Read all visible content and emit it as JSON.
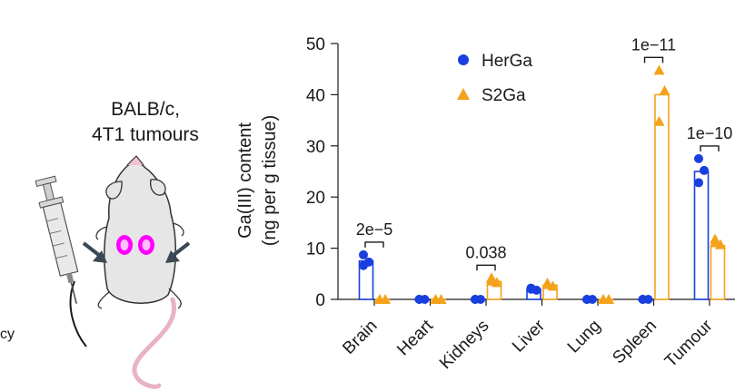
{
  "illustration": {
    "strain_line1": "BALB/c,",
    "strain_line2": "4T1 tumours",
    "cut_text": "cy",
    "icons": [
      "mouse-icon",
      "syringe-icon",
      "arrow-icon"
    ],
    "tumour_color": "#ff00ff"
  },
  "chart_data": {
    "type": "bar",
    "categories": [
      "Brain",
      "Heart",
      "Kidneys",
      "Liver",
      "Lung",
      "Spleen",
      "Tumour"
    ],
    "ylabel_line1": "Ga(III) content",
    "ylabel_line2": "(ng per g tissue)",
    "ylim": [
      0,
      50
    ],
    "yticks": [
      0,
      10,
      20,
      30,
      40,
      50
    ],
    "series": [
      {
        "name": "HerGa",
        "color": "#1a3fe0",
        "marker": "circle",
        "values": [
          7.5,
          0,
          0,
          2.0,
          0,
          0,
          25
        ],
        "points": [
          [
            8.7,
            7.3,
            6.6
          ],
          [
            0,
            0,
            0
          ],
          [
            0,
            0,
            0
          ],
          [
            2.0,
            1.8,
            2.2
          ],
          [
            0,
            0,
            0
          ],
          [
            0,
            0,
            0
          ],
          [
            27.5,
            25.2,
            22.8
          ]
        ]
      },
      {
        "name": "S2Ga",
        "color": "#f5a21b",
        "marker": "triangle",
        "values": [
          0,
          0,
          3.5,
          2.8,
          0,
          40,
          10.5
        ],
        "points": [
          [
            0,
            0,
            0
          ],
          [
            0,
            0,
            0
          ],
          [
            4.2,
            3.3,
            3.6
          ],
          [
            3.2,
            2.6,
            2.9
          ],
          [
            0,
            0,
            0
          ],
          [
            44.8,
            40.8,
            34.8
          ],
          [
            11.8,
            10.7,
            11.1
          ]
        ]
      }
    ],
    "significance": [
      {
        "category": "Brain",
        "text": "2e−5"
      },
      {
        "category": "Kidneys",
        "text": "0.038"
      },
      {
        "category": "Spleen",
        "text": "1e−11"
      },
      {
        "category": "Tumour",
        "text": "1e−10"
      }
    ],
    "legend_position": "top-left"
  }
}
